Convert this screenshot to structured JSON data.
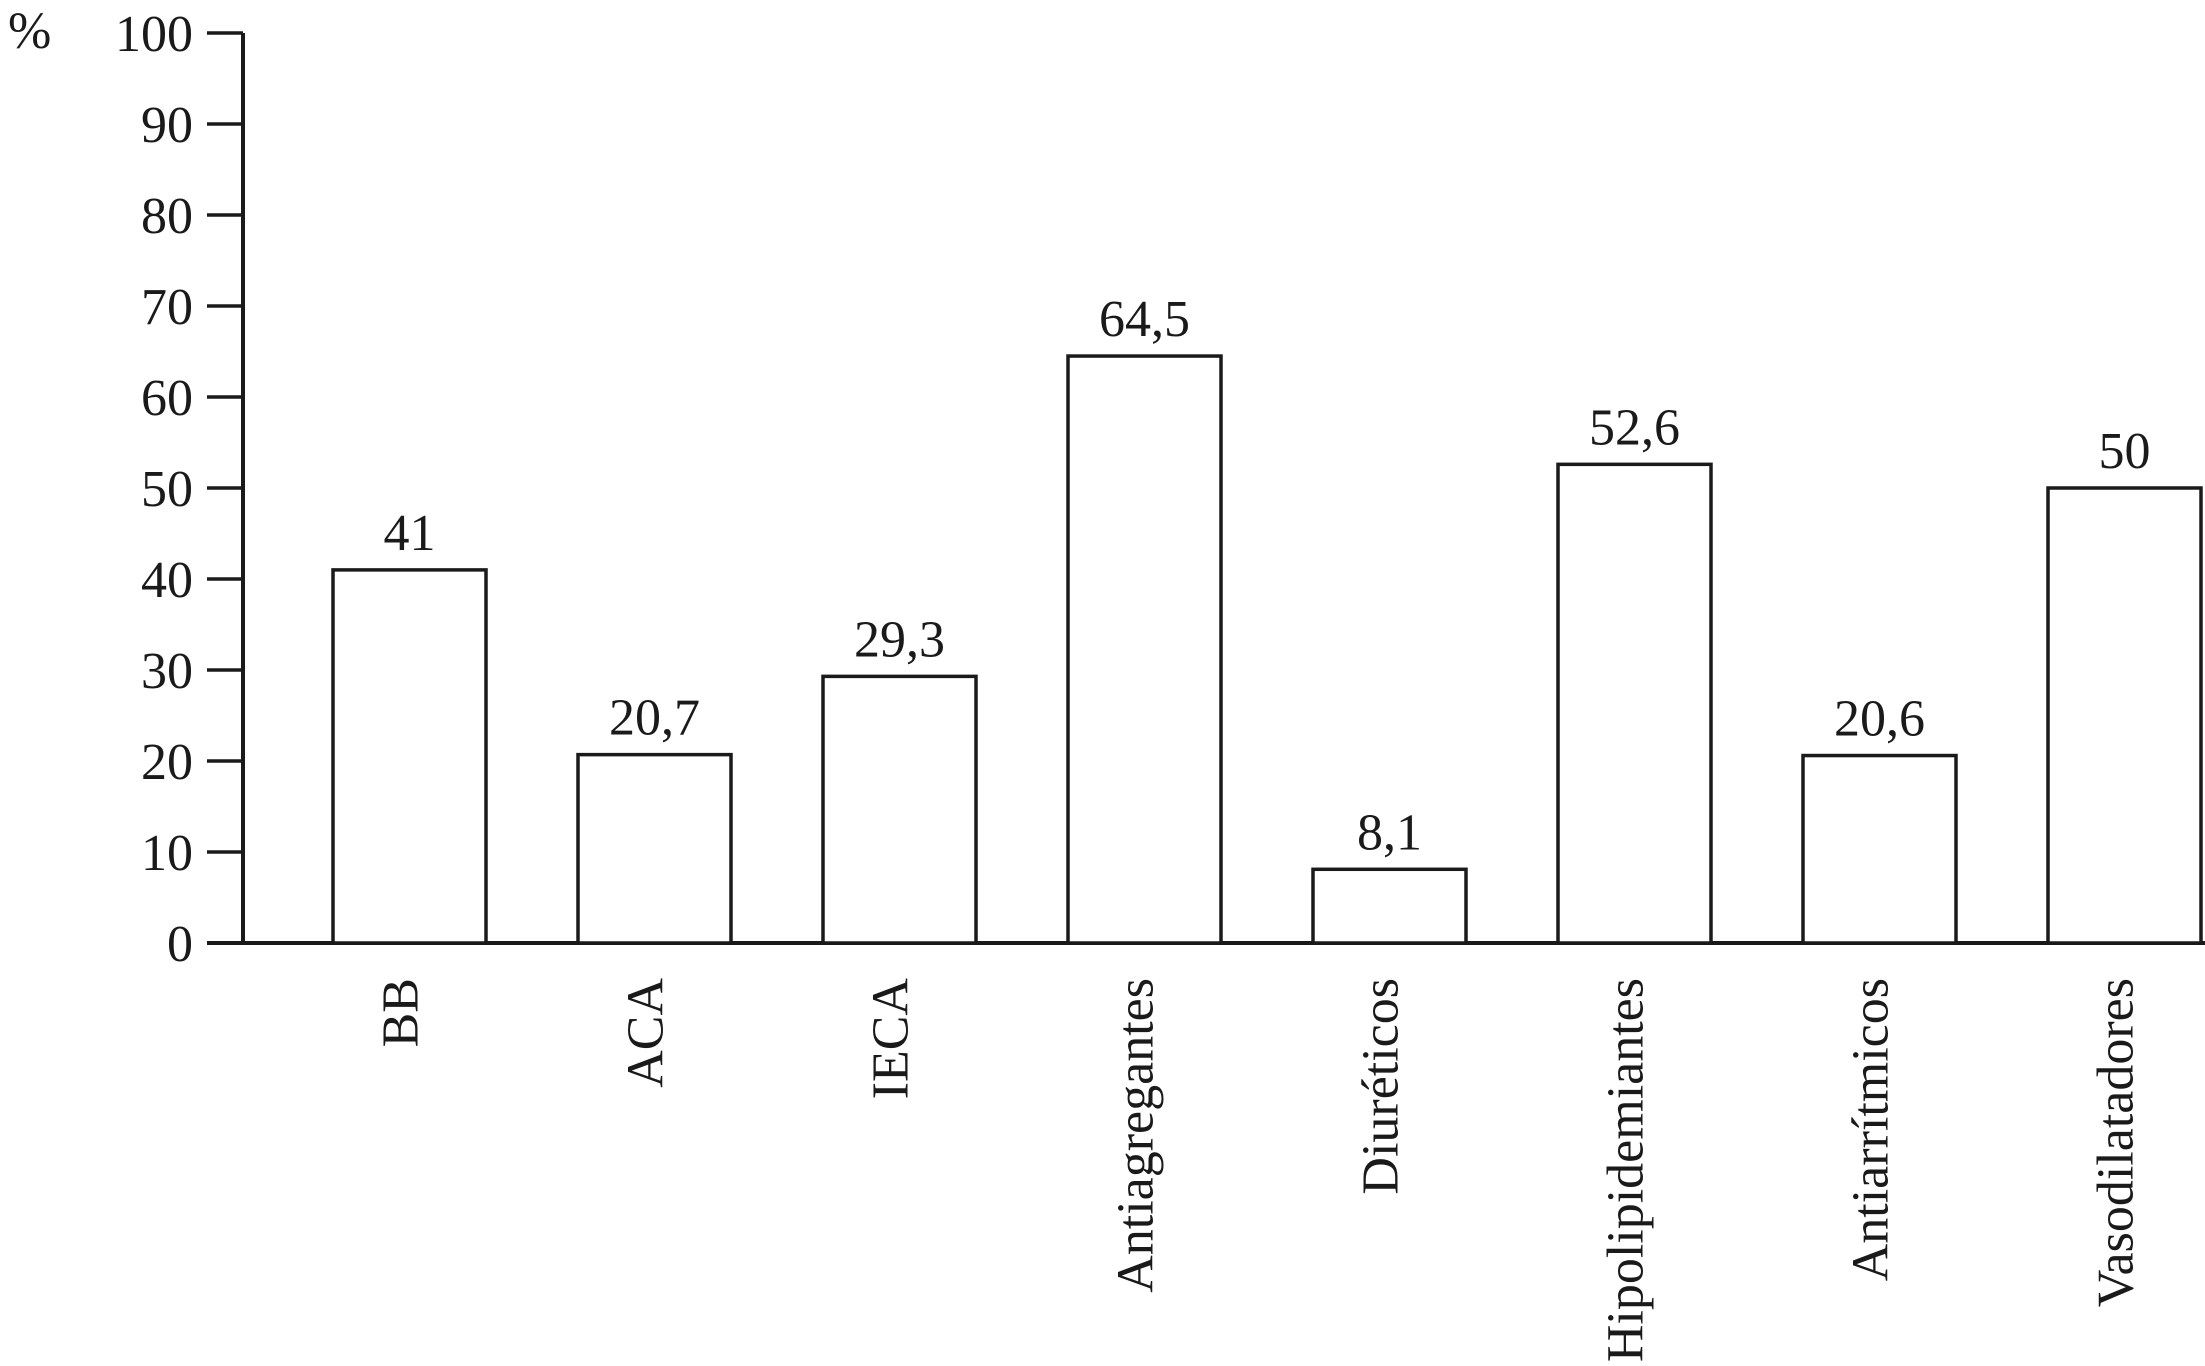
{
  "page": {
    "background": "#ffffff",
    "ink": "#1a1a1a"
  },
  "chart_data": {
    "type": "bar",
    "title": "",
    "categories": [
      "BB",
      "ACA",
      "IECA",
      "Antiagregantes",
      "Diuréticos",
      "Hipolipidemiantes",
      "Antiarrítmicos",
      "Vasodilatadores"
    ],
    "values": [
      41,
      20.7,
      29.3,
      64.5,
      8.1,
      52.6,
      20.6,
      50
    ],
    "value_labels": [
      "41",
      "20,7",
      "29,3",
      "64,5",
      "8,1",
      "52,6",
      "20,6",
      "50"
    ],
    "xlabel": "",
    "ylabel": "%",
    "ylim": [
      0,
      100
    ],
    "y_ticks": [
      0,
      10,
      20,
      30,
      40,
      50,
      60,
      70,
      80,
      90,
      100
    ],
    "grid": false,
    "legend": "none",
    "bar_fill": "#ffffff",
    "bar_stroke": "#1a1a1a",
    "axis_color": "#1a1a1a",
    "x_tick_label_rotation": -90,
    "decimal_separator": ","
  }
}
